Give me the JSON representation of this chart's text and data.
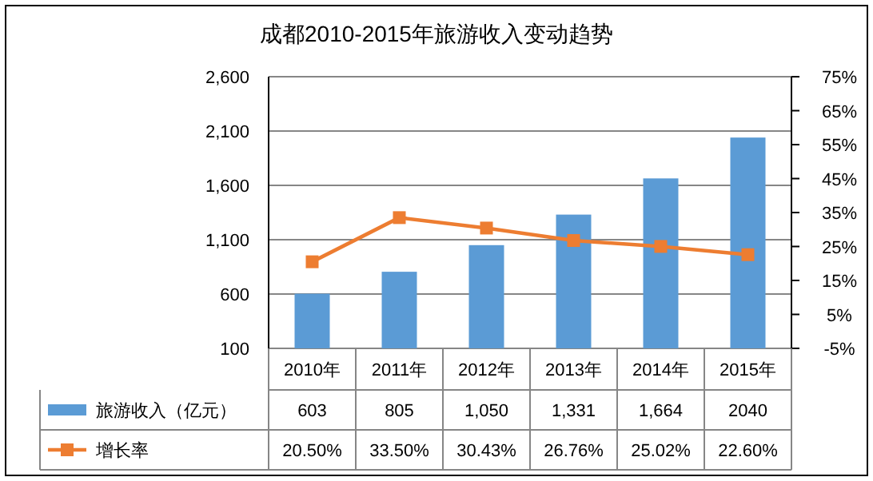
{
  "chart_data": {
    "type": "bar",
    "title": "成都2010-2015年旅游收入变动趋势",
    "categories": [
      "2010年",
      "2011年",
      "2012年",
      "2013年",
      "2014年",
      "2015年"
    ],
    "series": [
      {
        "name": "旅游收入（亿元）",
        "color": "#5b9bd5",
        "values": [
          603,
          805,
          1050,
          1331,
          1664,
          2040
        ],
        "value_labels": [
          "603",
          "805",
          "1,050",
          "1,331",
          "1,664",
          "2040"
        ]
      },
      {
        "name": "增长率",
        "type": "line",
        "axis": "y2",
        "color": "#ed7d31",
        "values": [
          20.5,
          33.5,
          30.43,
          26.76,
          25.02,
          22.6
        ],
        "value_labels": [
          "20.50%",
          "33.50%",
          "30.43%",
          "26.76%",
          "25.02%",
          "22.60%"
        ]
      }
    ],
    "marker": "square",
    "line_style": "solid",
    "grid": "y",
    "legend": "bottom",
    "ylim": [
      100,
      2600
    ],
    "yticks": [
      {
        "value": 100,
        "label": "100"
      },
      {
        "value": 600,
        "label": "600"
      },
      {
        "value": 1100,
        "label": "1,100"
      },
      {
        "value": 1600,
        "label": "1,600"
      },
      {
        "value": 2100,
        "label": "2,100"
      },
      {
        "value": 2600,
        "label": "2,600"
      }
    ],
    "y2lim": [
      -5,
      75
    ],
    "y2ticks": [
      {
        "value": -5,
        "label": "-5%"
      },
      {
        "value": 5,
        "label": "5%"
      },
      {
        "value": 15,
        "label": "15%"
      },
      {
        "value": 25,
        "label": "25%"
      },
      {
        "value": 35,
        "label": "35%"
      },
      {
        "value": 45,
        "label": "45%"
      },
      {
        "value": 55,
        "label": "55%"
      },
      {
        "value": 65,
        "label": "65%"
      },
      {
        "value": 75,
        "label": "75%"
      }
    ]
  }
}
